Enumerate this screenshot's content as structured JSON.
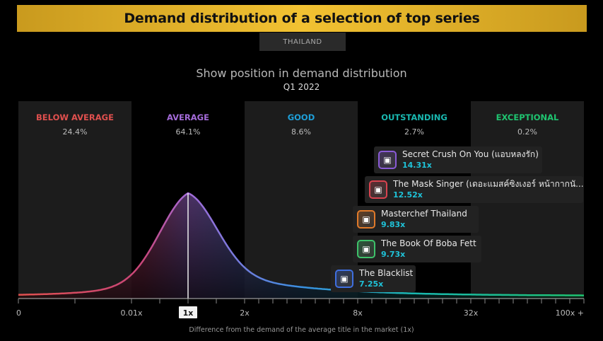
{
  "header": {
    "title": "Demand distribution of a selection of top series",
    "country": "THAILAND"
  },
  "chart_data": {
    "type": "area",
    "title": "Show position in demand distribution",
    "subtitle": "Q1 2022",
    "xlabel": "Difference from the demand of the average title in the market (1x)",
    "x_ticks": [
      "0",
      "0.01x",
      "1x",
      "2x",
      "8x",
      "32x",
      "100x +"
    ],
    "highlight_tick": "1x",
    "bands": [
      {
        "label": "BELOW AVERAGE",
        "share": "24.4%",
        "color": "#e0504e"
      },
      {
        "label": "AVERAGE",
        "share": "64.1%",
        "color": "#a46bd9"
      },
      {
        "label": "GOOD",
        "share": "8.6%",
        "color": "#1e9fd8"
      },
      {
        "label": "OUTSTANDING",
        "share": "2.7%",
        "color": "#19b8b0"
      },
      {
        "label": "EXCEPTIONAL",
        "share": "0.2%",
        "color": "#1fc470"
      }
    ],
    "series": [
      {
        "name": "Secret Crush On You (แอบหลงรัก)",
        "multiplier": "14.31x",
        "value": 14.31,
        "icon": "poster-icon",
        "border": "#8a5bd6"
      },
      {
        "name": "The Mask Singer (เดอะแมสค์ซิงเงอร์ หน้ากากนั...",
        "multiplier": "12.52x",
        "value": 12.52,
        "icon": "poster-icon",
        "border": "#d9434f"
      },
      {
        "name": "Masterchef Thailand",
        "multiplier": "9.83x",
        "value": 9.83,
        "icon": "poster-icon",
        "border": "#e07a2a"
      },
      {
        "name": "The Book Of Boba Fett",
        "multiplier": "9.73x",
        "value": 9.73,
        "icon": "poster-icon",
        "border": "#3ec26a"
      },
      {
        "name": "The Blacklist",
        "multiplier": "7.25x",
        "value": 7.25,
        "icon": "poster-icon",
        "border": "#3f6fe0"
      }
    ]
  }
}
